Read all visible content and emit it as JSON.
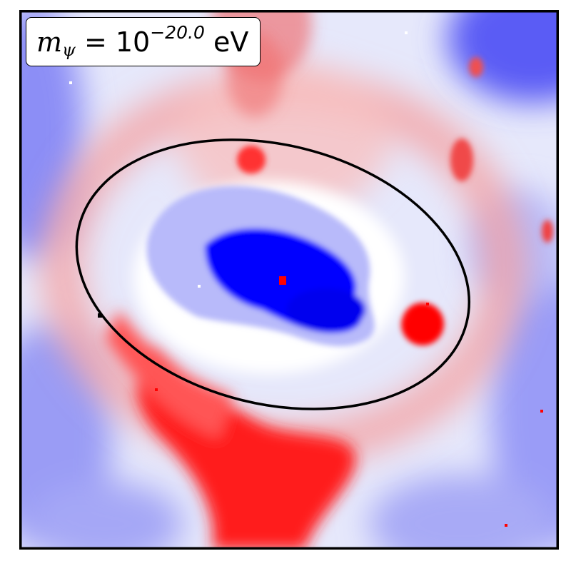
{
  "chart_data": {
    "type": "heatmap",
    "colormap": "bwr",
    "colors": {
      "positive": "#ff0000",
      "zero": "#ffffff",
      "negative": "#0000ff",
      "contour": "#000000"
    },
    "axes_ticks": false,
    "annotation": {
      "symbol": "m",
      "subscript": "ψ",
      "equals": " = 10",
      "exponent": "−20.0",
      "unit": " eV"
    },
    "contour": {
      "shape": "closed-ellipse",
      "center": [
        0.47,
        0.49
      ],
      "semi_axes": [
        0.37,
        0.24
      ],
      "tilt_deg": 14
    }
  }
}
